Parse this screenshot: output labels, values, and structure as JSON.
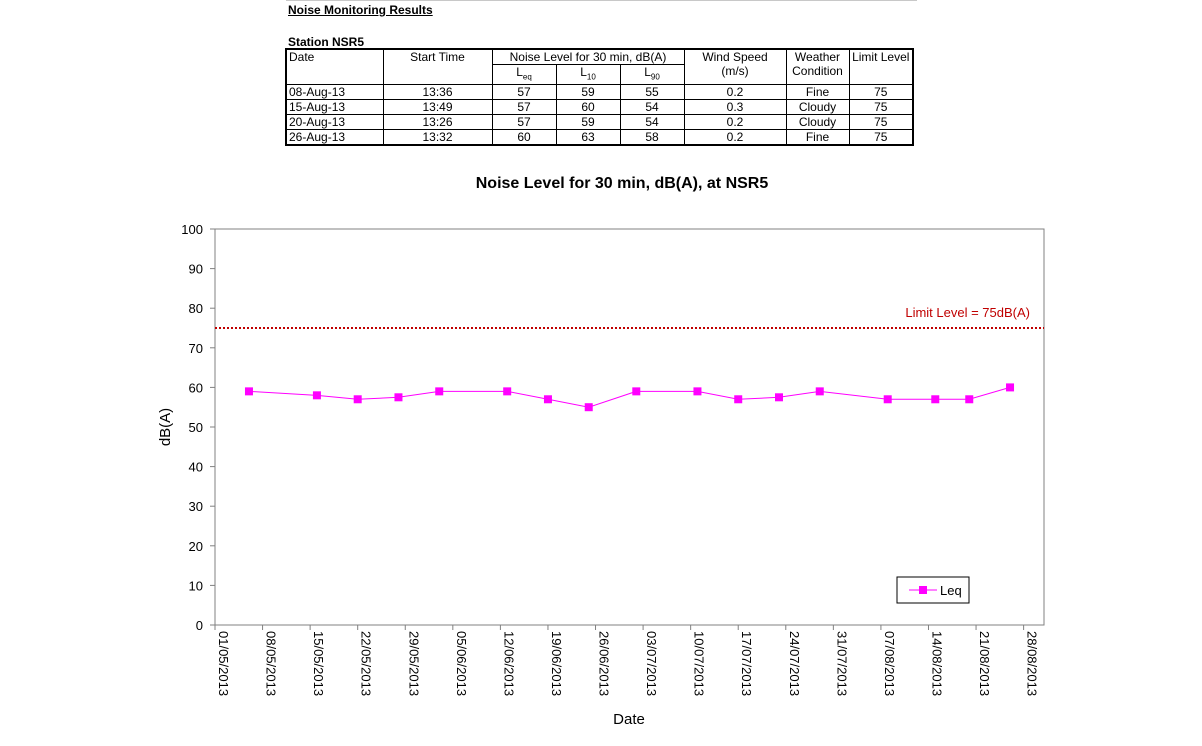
{
  "header": {
    "section_title": "Noise Monitoring Results",
    "station_title": "Station NSR5"
  },
  "table": {
    "col_date": "Date",
    "col_start_time": "Start Time",
    "col_noise_level": "Noise Level for 30 min, dB(A)",
    "col_leq_base": "L",
    "col_leq_sub": "eq",
    "col_l10_base": "L",
    "col_l10_sub": "10",
    "col_l90_base": "L",
    "col_l90_sub": "90",
    "col_wind_speed": "Wind Speed",
    "col_wind_unit": "(m/s)",
    "col_weather": "Weather",
    "col_condition": "Condition",
    "col_limit": "Limit Level",
    "rows": [
      {
        "date": "08-Aug-13",
        "time": "13:36",
        "leq": "57",
        "l10": "59",
        "l90": "55",
        "wind": "0.2",
        "weather": "Fine",
        "limit": "75"
      },
      {
        "date": "15-Aug-13",
        "time": "13:49",
        "leq": "57",
        "l10": "60",
        "l90": "54",
        "wind": "0.3",
        "weather": "Cloudy",
        "limit": "75"
      },
      {
        "date": "20-Aug-13",
        "time": "13:26",
        "leq": "57",
        "l10": "59",
        "l90": "54",
        "wind": "0.2",
        "weather": "Cloudy",
        "limit": "75"
      },
      {
        "date": "26-Aug-13",
        "time": "13:32",
        "leq": "60",
        "l10": "63",
        "l90": "58",
        "wind": "0.2",
        "weather": "Fine",
        "limit": "75"
      }
    ]
  },
  "chart_data": {
    "type": "line",
    "title": "Noise Level for 30 min, dB(A), at NSR5",
    "xlabel": "Date",
    "ylabel": "dB(A)",
    "ylim": [
      0,
      100
    ],
    "yticks": [
      0,
      10,
      20,
      30,
      40,
      50,
      60,
      70,
      80,
      90,
      100
    ],
    "xlim": [
      "2013-05-01",
      "2013-08-31"
    ],
    "xticks": [
      "01/05/2013",
      "08/05/2013",
      "15/05/2013",
      "22/05/2013",
      "29/05/2013",
      "05/06/2013",
      "12/06/2013",
      "19/06/2013",
      "26/06/2013",
      "03/07/2013",
      "10/07/2013",
      "17/07/2013",
      "24/07/2013",
      "31/07/2013",
      "07/08/2013",
      "14/08/2013",
      "21/08/2013",
      "28/08/2013"
    ],
    "grid": false,
    "legend_position": "bottom-right",
    "series": [
      {
        "name": "Leq",
        "color": "#ff00ff",
        "marker": "square",
        "x": [
          "2013-05-06",
          "2013-05-16",
          "2013-05-22",
          "2013-05-28",
          "2013-06-03",
          "2013-06-13",
          "2013-06-19",
          "2013-06-25",
          "2013-07-02",
          "2013-07-11",
          "2013-07-17",
          "2013-07-23",
          "2013-07-29",
          "2013-08-08",
          "2013-08-15",
          "2013-08-20",
          "2013-08-26"
        ],
        "values": [
          59,
          58,
          57,
          57.5,
          59,
          59,
          57,
          55,
          59,
          59,
          57,
          57.5,
          59,
          57,
          57,
          57,
          60
        ]
      }
    ],
    "limit_line": {
      "value": 75,
      "label": "Limit Level  = 75dB(A)",
      "color": "#c00000"
    }
  }
}
